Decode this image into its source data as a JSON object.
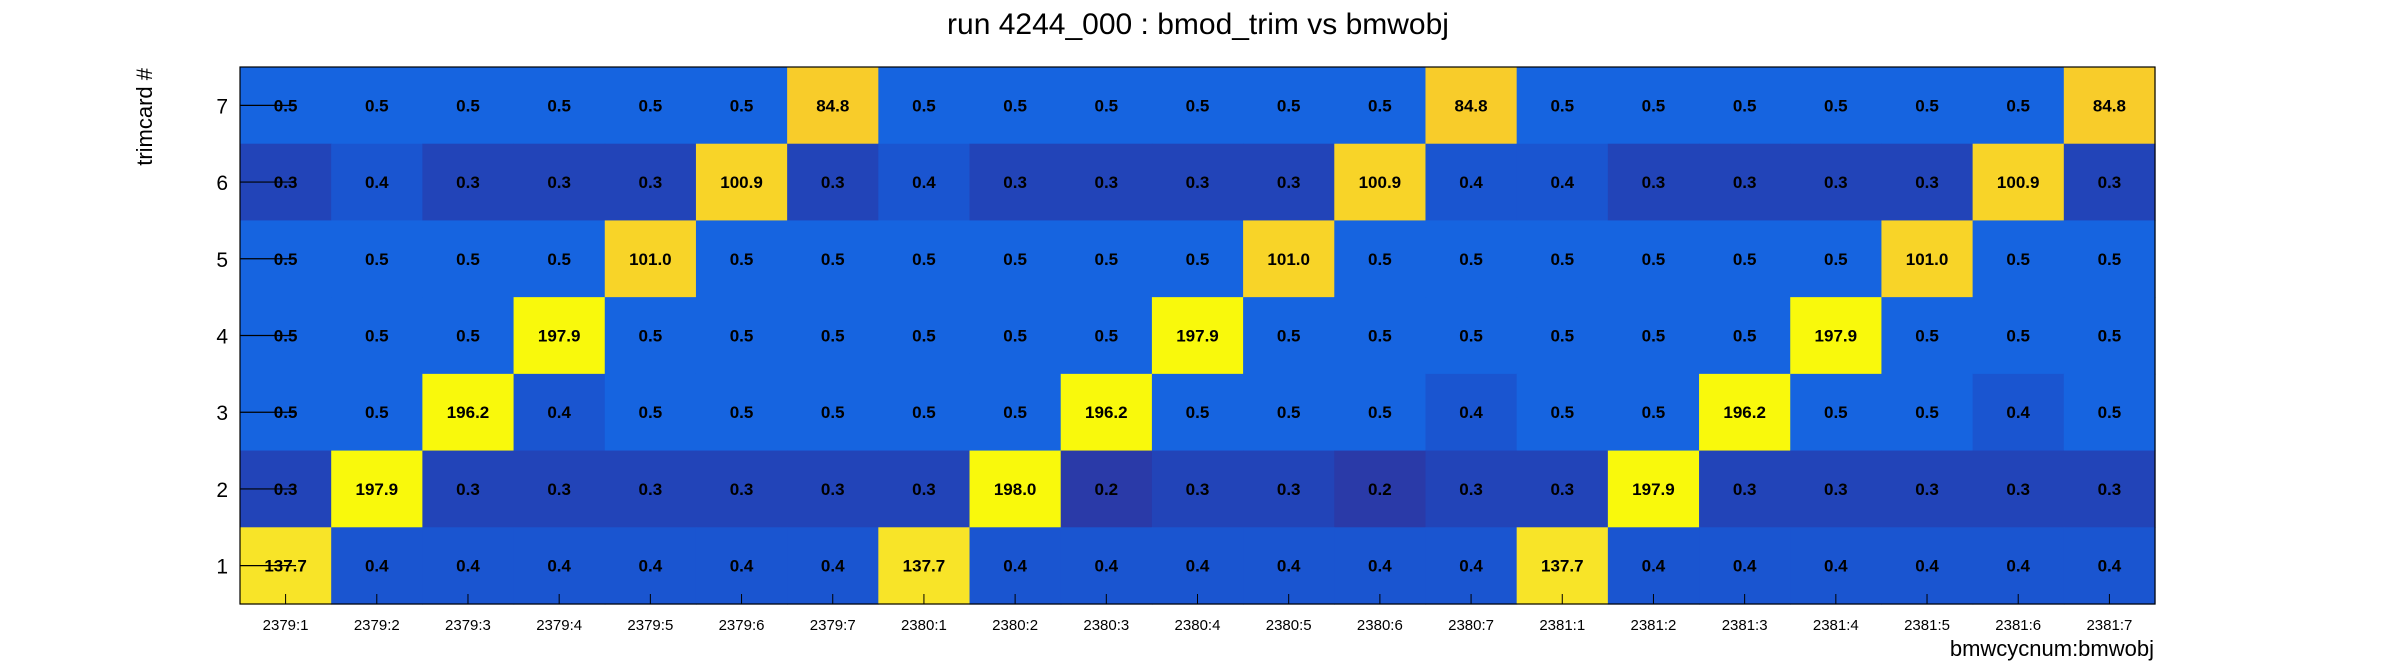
{
  "chart_data": {
    "type": "heatmap",
    "title": "run 4244_000 : bmod_trim vs bmwobj",
    "xlabel": "bmwcycnum:bmwobj",
    "ylabel": "trimcard #",
    "x_categories": [
      "2379:1",
      "2379:2",
      "2379:3",
      "2379:4",
      "2379:5",
      "2379:6",
      "2379:7",
      "2380:1",
      "2380:2",
      "2380:3",
      "2380:4",
      "2380:5",
      "2380:6",
      "2380:7",
      "2381:1",
      "2381:2",
      "2381:3",
      "2381:4",
      "2381:5",
      "2381:6",
      "2381:7"
    ],
    "y_categories": [
      "1",
      "2",
      "3",
      "4",
      "5",
      "6",
      "7"
    ],
    "grid": false,
    "legend": "none",
    "colormap": {
      "low": "#2a3aa8",
      "mid": "#1664e0",
      "high": "#f9f90c",
      "warm": "#f8cc2a"
    },
    "values": [
      {
        "y": "7",
        "row": [
          "0.5",
          "0.5",
          "0.5",
          "0.5",
          "0.5",
          "0.5",
          "84.8",
          "0.5",
          "0.5",
          "0.5",
          "0.5",
          "0.5",
          "0.5",
          "84.8",
          "0.5",
          "0.5",
          "0.5",
          "0.5",
          "0.5",
          "0.5",
          "84.8"
        ]
      },
      {
        "y": "6",
        "row": [
          "0.3",
          "0.4",
          "0.3",
          "0.3",
          "0.3",
          "100.9",
          "0.3",
          "0.4",
          "0.3",
          "0.3",
          "0.3",
          "0.3",
          "100.9",
          "0.4",
          "0.4",
          "0.3",
          "0.3",
          "0.3",
          "0.3",
          "100.9",
          "0.3"
        ]
      },
      {
        "y": "5",
        "row": [
          "0.5",
          "0.5",
          "0.5",
          "0.5",
          "101.0",
          "0.5",
          "0.5",
          "0.5",
          "0.5",
          "0.5",
          "0.5",
          "101.0",
          "0.5",
          "0.5",
          "0.5",
          "0.5",
          "0.5",
          "0.5",
          "101.0",
          "0.5",
          "0.5"
        ]
      },
      {
        "y": "4",
        "row": [
          "0.5",
          "0.5",
          "0.5",
          "197.9",
          "0.5",
          "0.5",
          "0.5",
          "0.5",
          "0.5",
          "0.5",
          "197.9",
          "0.5",
          "0.5",
          "0.5",
          "0.5",
          "0.5",
          "0.5",
          "197.9",
          "0.5",
          "0.5",
          "0.5"
        ]
      },
      {
        "y": "3",
        "row": [
          "0.5",
          "0.5",
          "196.2",
          "0.4",
          "0.5",
          "0.5",
          "0.5",
          "0.5",
          "0.5",
          "196.2",
          "0.5",
          "0.5",
          "0.5",
          "0.4",
          "0.5",
          "0.5",
          "196.2",
          "0.5",
          "0.5",
          "0.4",
          "0.5"
        ]
      },
      {
        "y": "2",
        "row": [
          "0.3",
          "197.9",
          "0.3",
          "0.3",
          "0.3",
          "0.3",
          "0.3",
          "0.3",
          "198.0",
          "0.2",
          "0.3",
          "0.3",
          "0.2",
          "0.3",
          "0.3",
          "197.9",
          "0.3",
          "0.3",
          "0.3",
          "0.3",
          "0.3"
        ]
      },
      {
        "y": "1",
        "row": [
          "137.7",
          "0.4",
          "0.4",
          "0.4",
          "0.4",
          "0.4",
          "0.4",
          "137.7",
          "0.4",
          "0.4",
          "0.4",
          "0.4",
          "0.4",
          "0.4",
          "137.7",
          "0.4",
          "0.4",
          "0.4",
          "0.4",
          "0.4",
          "0.4"
        ]
      }
    ]
  }
}
